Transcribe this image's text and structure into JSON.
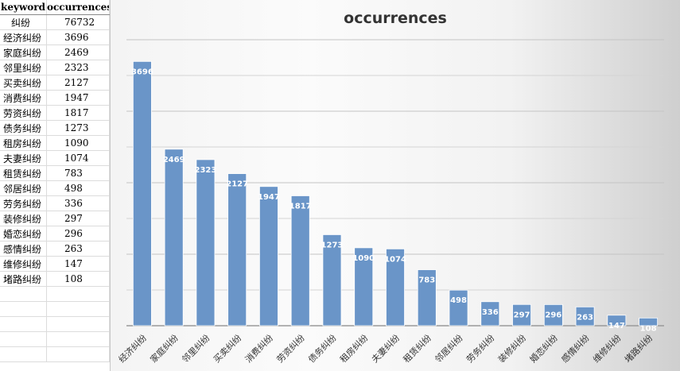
{
  "table": {
    "headers": [
      "keyword",
      "occurrences"
    ],
    "rows": [
      [
        "纠纷",
        "76732"
      ],
      [
        "经济纠纷",
        "3696"
      ],
      [
        "家庭纠纷",
        "2469"
      ],
      [
        "邻里纠纷",
        "2323"
      ],
      [
        "买卖纠纷",
        "2127"
      ],
      [
        "消费纠纷",
        "1947"
      ],
      [
        "劳资纠纷",
        "1817"
      ],
      [
        "债务纠纷",
        "1273"
      ],
      [
        "租房纠纷",
        "1090"
      ],
      [
        "夫妻纠纷",
        "1074"
      ],
      [
        "租赁纠纷",
        "783"
      ],
      [
        "邻居纠纷",
        "498"
      ],
      [
        "劳务纠纷",
        "336"
      ],
      [
        "装修纠纷",
        "297"
      ],
      [
        "婚恋纠纷",
        "296"
      ],
      [
        "感情纠纷",
        "263"
      ],
      [
        "维修纠纷",
        "147"
      ],
      [
        "堵路纠纷",
        "108"
      ]
    ]
  },
  "chart_data": {
    "type": "bar",
    "title": "occurrences",
    "categories": [
      "经济纠纷",
      "家庭纠纷",
      "邻里纠纷",
      "买卖纠纷",
      "消费纠纷",
      "劳资纠纷",
      "债务纠纷",
      "租房纠纷",
      "夫妻纠纷",
      "租赁纠纷",
      "邻居纠纷",
      "劳务纠纷",
      "装修纠纷",
      "婚恋纠纷",
      "感情纠纷",
      "维修纠纷",
      "堵路纠纷"
    ],
    "values": [
      3696,
      2469,
      2323,
      2127,
      1947,
      1817,
      1273,
      1090,
      1074,
      783,
      498,
      336,
      297,
      296,
      263,
      147,
      108
    ],
    "ylim": [
      0,
      4000
    ],
    "grid": true,
    "legend": "none",
    "bar_color": "#6a95c8"
  }
}
